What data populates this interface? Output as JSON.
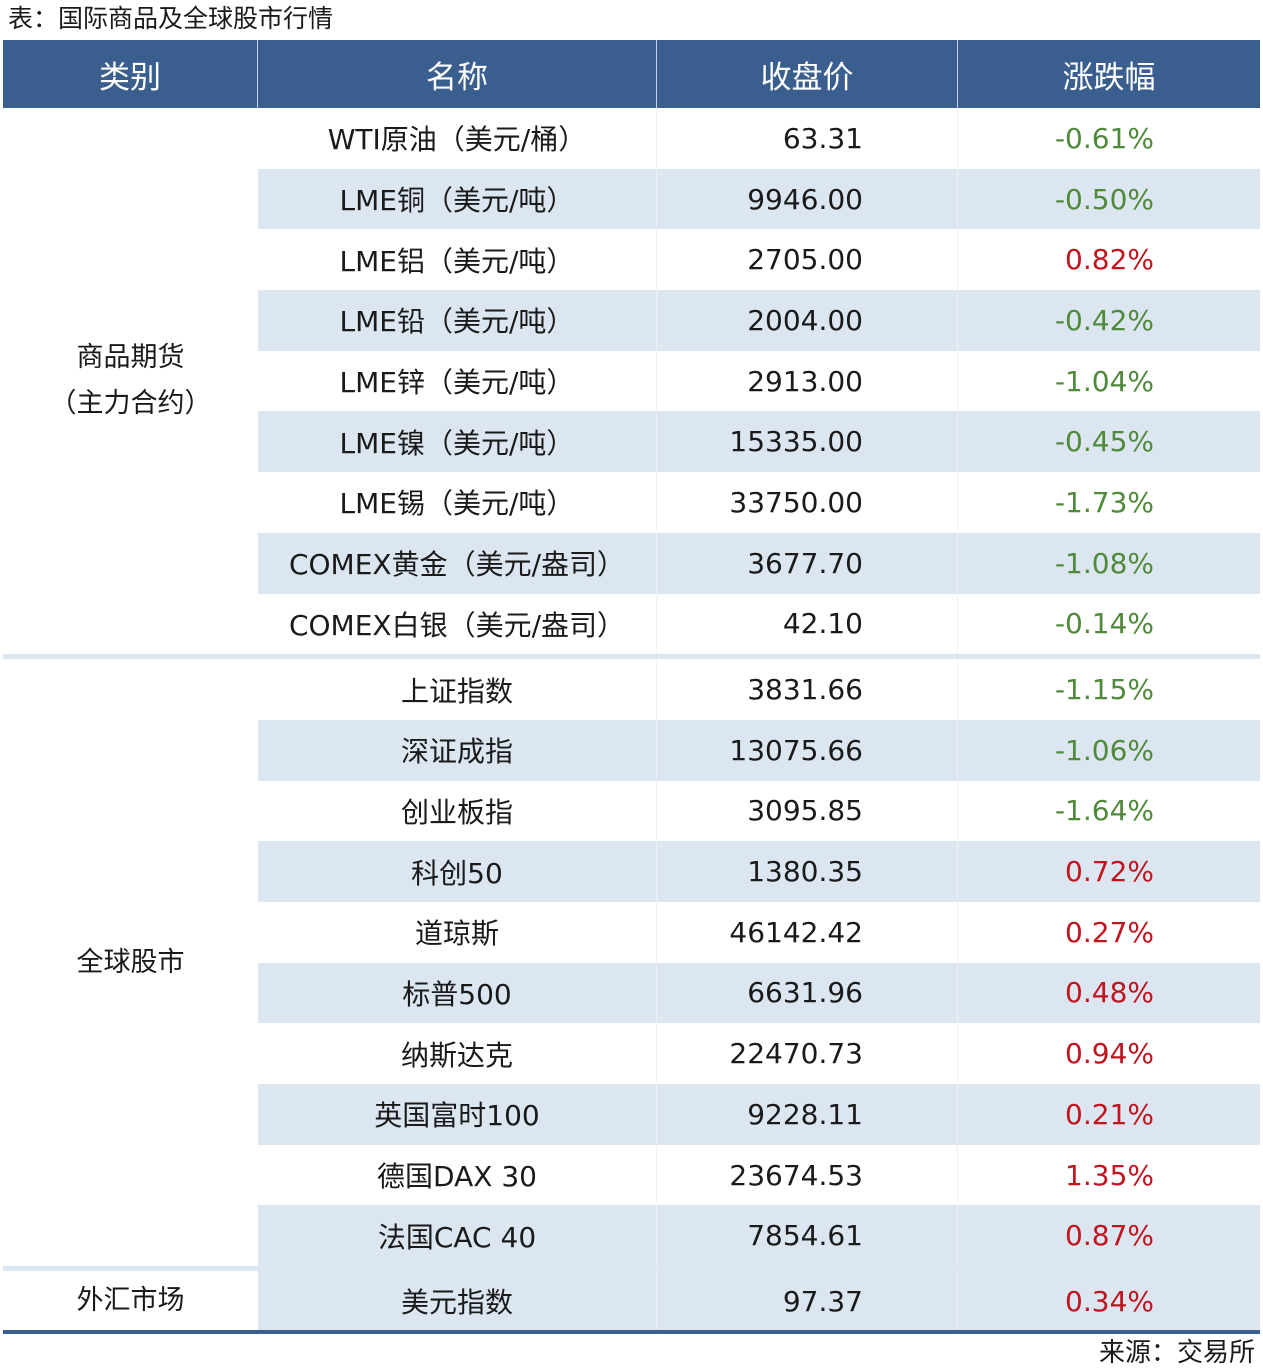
{
  "title": "表：国际商品及全球股市行情",
  "header": [
    "类别",
    "名称",
    "收盘价",
    "涨跌幅"
  ],
  "groups": [
    {
      "category": "商品期货\n（主力合约）",
      "rows": [
        {
          "name": "WTI原油（美元/桶）",
          "price": "63.31",
          "change": "-0.61%"
        },
        {
          "name": "LME铜（美元/吨）",
          "price": "9946.00",
          "change": "-0.50%"
        },
        {
          "name": "LME铝（美元/吨）",
          "price": "2705.00",
          "change": "0.82%"
        },
        {
          "name": "LME铅（美元/吨）",
          "price": "2004.00",
          "change": "-0.42%"
        },
        {
          "name": "LME锌（美元/吨）",
          "price": "2913.00",
          "change": "-1.04%"
        },
        {
          "name": "LME镍（美元/吨）",
          "price": "15335.00",
          "change": "-0.45%"
        },
        {
          "name": "LME锡（美元/吨）",
          "price": "33750.00",
          "change": "-1.73%"
        },
        {
          "name": "COMEX黄金（美元/盎司）",
          "price": "3677.70",
          "change": "-1.08%"
        },
        {
          "name": "COMEX白银（美元/盎司）",
          "price": "42.10",
          "change": "-0.14%"
        }
      ]
    },
    {
      "category": "全球股市",
      "rows": [
        {
          "name": "上证指数",
          "price": "3831.66",
          "change": "-1.15%"
        },
        {
          "name": "深证成指",
          "price": "13075.66",
          "change": "-1.06%"
        },
        {
          "name": "创业板指",
          "price": "3095.85",
          "change": "-1.64%"
        },
        {
          "name": "科创50",
          "price": "1380.35",
          "change": "0.72%"
        },
        {
          "name": "道琼斯",
          "price": "46142.42",
          "change": "0.27%"
        },
        {
          "name": "标普500",
          "price": "6631.96",
          "change": "0.48%"
        },
        {
          "name": "纳斯达克",
          "price": "22470.73",
          "change": "0.94%"
        },
        {
          "name": "英国富时100",
          "price": "9228.11",
          "change": "0.21%"
        },
        {
          "name": "德国DAX 30",
          "price": "23674.53",
          "change": "1.35%"
        },
        {
          "name": "法国CAC 40",
          "price": "7854.61",
          "change": "0.87%"
        }
      ]
    },
    {
      "category": "外汇市场",
      "rows": [
        {
          "name": "美元指数",
          "price": "97.37",
          "change": "0.34%"
        }
      ]
    }
  ],
  "source": "来源：交易所",
  "colors": {
    "header": "#3a5f8f",
    "alt_row": "#dce6f1",
    "up": "#c0141e",
    "down": "#4f8a3a"
  }
}
